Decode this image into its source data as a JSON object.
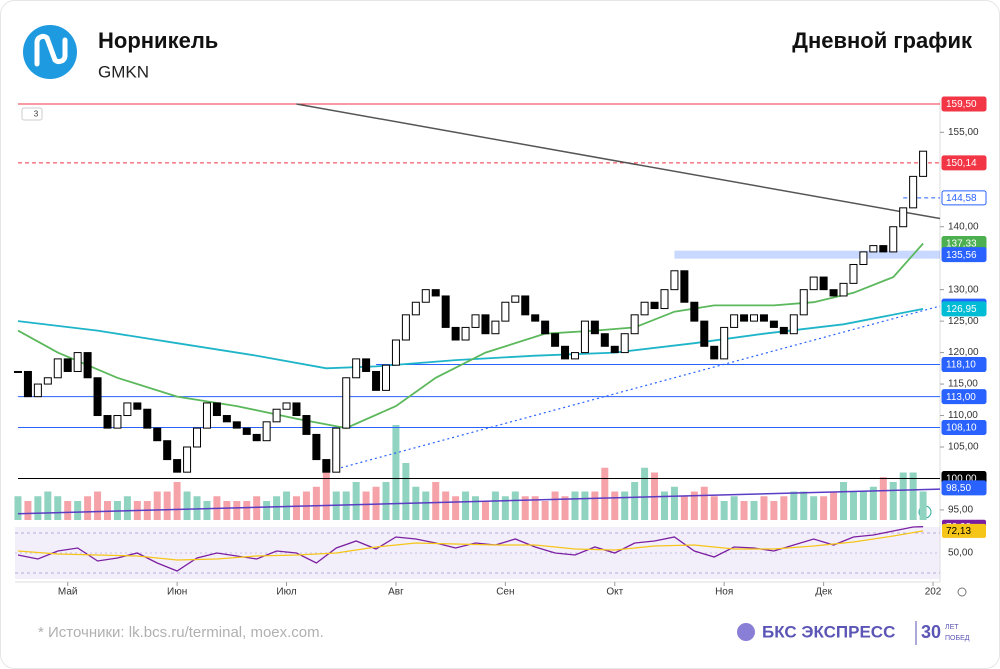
{
  "header": {
    "title": "Норникель",
    "ticker": "GMKN",
    "subtitle": "Дневной график"
  },
  "ui": {
    "collapse_badge": "3"
  },
  "footer": {
    "source": "* Источники: lk.bcs.ru/terminal, moex.com.",
    "brand": "БКС ЭКСПРЕСС",
    "badge_number": "30",
    "badge_text_1": "ЛЕТ",
    "badge_text_2": "ПОБЕД"
  },
  "chart_data": {
    "type": "candlestick",
    "up_color": "#ffffff",
    "down_color": "#000000",
    "values": [
      117,
      113,
      115,
      116,
      119,
      117,
      120,
      116,
      110,
      108,
      110,
      112,
      111,
      108,
      106,
      103,
      101,
      105,
      108,
      112,
      110,
      109,
      108,
      107,
      106,
      109,
      111,
      112,
      110,
      107,
      103,
      101,
      108,
      116,
      119,
      117,
      114,
      118,
      122,
      126,
      128,
      130,
      129,
      124,
      122,
      124,
      126,
      123,
      125,
      128,
      129,
      126,
      125,
      123,
      121,
      119,
      120,
      125,
      123,
      121,
      120,
      123,
      126,
      128,
      127,
      130,
      133,
      128,
      125,
      121,
      119,
      124,
      126,
      125,
      126,
      125,
      124,
      123,
      126,
      130,
      132,
      130,
      129,
      131,
      134,
      136,
      137,
      136,
      140,
      143,
      148,
      152
    ],
    "xlim": [
      -0.3,
      92.7
    ],
    "xticks": [
      {
        "value": 5,
        "label": "Май"
      },
      {
        "value": 16,
        "label": "Июн"
      },
      {
        "value": 27,
        "label": "Июл"
      },
      {
        "value": 38,
        "label": "Авг"
      },
      {
        "value": 49,
        "label": "Сен"
      },
      {
        "value": 60,
        "label": "Окт"
      },
      {
        "value": 71,
        "label": "Ноя"
      },
      {
        "value": 81,
        "label": "Дек"
      },
      {
        "value": 92,
        "label": "202"
      }
    ],
    "ylim": [
      93.4,
      159.5
    ],
    "yticks": [
      {
        "value": 95,
        "label": "95,00"
      },
      {
        "value": 105,
        "label": "105,00"
      },
      {
        "value": 110,
        "label": "110,00"
      },
      {
        "value": 115,
        "label": "115,00"
      },
      {
        "value": 120,
        "label": "120,00"
      },
      {
        "value": 125,
        "label": "125,00"
      },
      {
        "value": 130,
        "label": "130,00"
      },
      {
        "value": 140,
        "label": "140,00"
      },
      {
        "value": 155,
        "label": "155,00"
      }
    ],
    "moving_averages": [
      {
        "color": "#1fb5c9",
        "x": [
          0,
          8,
          16,
          24,
          31,
          36,
          44,
          52,
          60,
          68,
          75,
          83,
          91
        ],
        "values": [
          125,
          123.5,
          121.5,
          119.5,
          117.5,
          117.8,
          118.8,
          119.5,
          120,
          121.5,
          123,
          124.5,
          126.95
        ]
      },
      {
        "color": "#5cb85c",
        "x": [
          0,
          4,
          10,
          16,
          22,
          28,
          33,
          38,
          42,
          47,
          53,
          58,
          62,
          66,
          70,
          76,
          80,
          84,
          88,
          91
        ],
        "values": [
          123.5,
          120,
          116,
          113,
          111.5,
          109.5,
          108,
          111.5,
          116,
          120,
          123,
          123.5,
          124,
          126.5,
          127.5,
          127.5,
          128,
          129.5,
          132,
          137.33
        ]
      }
    ],
    "trend_lines": [
      {
        "color": "#555555",
        "style": "solid",
        "points": [
          [
            28,
            159.5
          ],
          [
            92.7,
            141.3
          ]
        ]
      },
      {
        "color": "#2962ff",
        "style": "dotted",
        "points": [
          [
            32,
            101.5
          ],
          [
            92.7,
            127.4
          ]
        ]
      },
      {
        "color": "#5b3cc4",
        "style": "solid",
        "points": [
          [
            0,
            94.4
          ],
          [
            92.7,
            98.3
          ]
        ]
      }
    ],
    "levels": [
      {
        "value": 159.5,
        "label": "159,50",
        "color": "#f23645",
        "style": "solid",
        "from": 0
      },
      {
        "value": 150.14,
        "label": "150,14",
        "color": "#f23645",
        "style": "dashed",
        "from": 0
      },
      {
        "value": 144.58,
        "label": "144,58",
        "color": "#2962ff",
        "style": "dashed",
        "from": 89,
        "outline": true
      },
      {
        "value": 137.33,
        "label": "137,33",
        "color": "#4caf50",
        "style": "none",
        "from": 91
      },
      {
        "value": 135.56,
        "label": "135,56",
        "color": "#2962ff",
        "style": "band",
        "from": 66
      },
      {
        "value": 127.38,
        "label": "127,38",
        "color": "#2962ff",
        "style": "none",
        "from": 91
      },
      {
        "value": 126.95,
        "label": "126,95",
        "color": "#00bcd4",
        "style": "none",
        "from": 91
      },
      {
        "value": 118.1,
        "label": "118,10",
        "color": "#2962ff",
        "style": "solid",
        "from": 36
      },
      {
        "value": 113,
        "label": "113,00",
        "color": "#2962ff",
        "style": "solid",
        "from": 0
      },
      {
        "value": 108.1,
        "label": "108,10",
        "color": "#2962ff",
        "style": "solid",
        "from": 0
      },
      {
        "value": 100,
        "label": "100,00",
        "color": "#000000",
        "style": "solid",
        "from": 0
      },
      {
        "value": 98.5,
        "label": "98,50",
        "color": "#2962ff",
        "style": "none",
        "from": 91
      }
    ],
    "volume": {
      "up_color": "#8fd3c0",
      "down_color": "#f5a3a8",
      "ylim": [
        0,
        10
      ],
      "values": [
        2.5,
        2,
        2.5,
        3,
        2.5,
        2,
        2,
        2.5,
        3,
        2,
        2,
        2.5,
        2,
        2,
        3,
        3,
        4,
        3,
        2.5,
        2,
        2.5,
        2,
        2,
        2,
        2.5,
        2,
        2.5,
        3,
        2.5,
        3,
        3.5,
        5,
        3,
        3,
        4,
        3,
        3.5,
        4,
        10,
        6,
        3.5,
        3,
        4,
        3,
        2.5,
        3,
        2.5,
        2,
        3,
        2.5,
        3,
        2.5,
        2.5,
        2,
        3,
        2.5,
        3,
        3,
        3,
        5.5,
        3,
        3,
        4,
        5.5,
        5,
        3,
        3.5,
        2.5,
        3,
        3.5,
        2.5,
        2,
        2.5,
        2,
        2,
        2.5,
        2,
        2.5,
        3,
        3,
        2.5,
        2.5,
        3,
        4,
        3,
        3,
        3.5,
        4.5,
        4,
        5,
        5,
        3
      ]
    },
    "rsi": {
      "ylim": [
        25,
        79
      ],
      "band": [
        30,
        70
      ],
      "yticks": [
        {
          "value": 50,
          "label": "50,00"
        }
      ],
      "series": [
        {
          "color": "#7b1fa2",
          "x": [
            0,
            2,
            4,
            6,
            8,
            10,
            12,
            14,
            16,
            18,
            20,
            22,
            24,
            26,
            28,
            30,
            32,
            34,
            36,
            38,
            40,
            42,
            44,
            46,
            48,
            50,
            52,
            54,
            56,
            58,
            60,
            62,
            64,
            66,
            68,
            70,
            72,
            74,
            76,
            78,
            80,
            82,
            84,
            86,
            88,
            90,
            91
          ],
          "values": [
            48,
            44,
            52,
            55,
            42,
            45,
            50,
            40,
            32,
            45,
            50,
            47,
            44,
            52,
            50,
            40,
            55,
            62,
            54,
            66,
            64,
            60,
            55,
            60,
            58,
            64,
            56,
            50,
            48,
            56,
            50,
            60,
            62,
            66,
            52,
            46,
            56,
            55,
            52,
            58,
            64,
            58,
            66,
            68,
            72,
            76,
            76.28
          ],
          "tag": {
            "label": "76,28",
            "color": "#7b1fa2"
          }
        },
        {
          "color": "#f5c518",
          "x": [
            0,
            4,
            8,
            12,
            16,
            20,
            24,
            28,
            32,
            36,
            40,
            44,
            48,
            52,
            56,
            60,
            64,
            68,
            72,
            76,
            80,
            84,
            88,
            91
          ],
          "values": [
            52,
            49,
            48,
            47,
            43,
            44,
            47,
            48,
            50,
            56,
            60,
            59,
            58,
            58,
            54,
            53,
            57,
            58,
            54,
            54,
            57,
            61,
            67,
            72.13
          ],
          "tag": {
            "label": "72,13",
            "color": "#f5c518"
          }
        }
      ]
    }
  }
}
